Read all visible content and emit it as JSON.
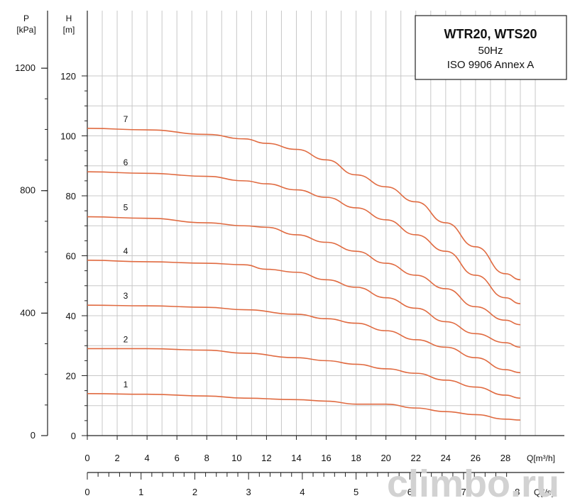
{
  "chart_data": {
    "type": "line",
    "title_box": {
      "line1": "WTR20, WTS20",
      "line2": "50Hz",
      "line3": "ISO 9906  Annex A"
    },
    "accent_color": "#e06a40",
    "y_axis_left": {
      "symbol": "P",
      "unit": "[kPa]",
      "ticks": [
        0,
        400,
        800,
        1200
      ]
    },
    "y_axis_right": {
      "symbol": "H",
      "unit": "[m]",
      "ticks": [
        0,
        20,
        40,
        60,
        80,
        100,
        120
      ],
      "ylim": [
        0,
        120
      ]
    },
    "x_axis_flow_m3h": {
      "label": "Q[m³/h]",
      "ticks": [
        0,
        2,
        4,
        6,
        8,
        10,
        12,
        14,
        16,
        18,
        20,
        22,
        24,
        26,
        28
      ],
      "xlim": [
        0,
        29
      ]
    },
    "x_axis_flow_ls": {
      "label": "Q[l/s]",
      "ticks": [
        0,
        1,
        2,
        3,
        4,
        5,
        6,
        7,
        8
      ]
    },
    "series": [
      {
        "name": "1",
        "x": [
          0,
          4,
          8,
          10.5,
          14,
          16,
          18,
          20,
          22,
          24,
          26,
          28,
          29
        ],
        "y": [
          14,
          13.8,
          13.2,
          12.5,
          12,
          11.5,
          10.5,
          10.5,
          9.2,
          8,
          7,
          5.5,
          5.2
        ]
      },
      {
        "name": "2",
        "x": [
          0,
          4,
          8,
          10.5,
          14,
          16,
          18,
          20,
          22,
          24,
          26,
          28,
          29
        ],
        "y": [
          29,
          29,
          28.5,
          27.5,
          26,
          25,
          23.8,
          22.3,
          20.8,
          18.5,
          16.2,
          13.5,
          12.5
        ]
      },
      {
        "name": "3",
        "x": [
          0,
          4,
          8,
          10.5,
          14,
          16,
          18,
          20,
          22,
          24,
          26,
          28,
          29
        ],
        "y": [
          43.5,
          43.3,
          42.8,
          42,
          40.5,
          39,
          37.5,
          35,
          32,
          29.5,
          26,
          22,
          21
        ]
      },
      {
        "name": "4",
        "x": [
          0,
          4,
          8,
          10.5,
          12,
          14,
          16,
          18,
          20,
          22,
          24,
          26,
          28,
          29
        ],
        "y": [
          58.5,
          58,
          57.5,
          57,
          55.5,
          54.5,
          52,
          49.5,
          46,
          42.5,
          38,
          34,
          31,
          29.5
        ]
      },
      {
        "name": "5",
        "x": [
          0,
          4,
          8,
          10.5,
          12,
          14,
          16,
          18,
          20,
          22,
          24,
          26,
          28,
          29
        ],
        "y": [
          73,
          72.5,
          71,
          70,
          69.5,
          67,
          64.5,
          61.5,
          57.5,
          53.5,
          49,
          43,
          38.5,
          37
        ]
      },
      {
        "name": "6",
        "x": [
          0,
          4,
          8,
          10.5,
          12,
          14,
          16,
          18,
          20,
          22,
          24,
          26,
          28,
          29
        ],
        "y": [
          88,
          87.5,
          86.5,
          85,
          84,
          82,
          79.5,
          76,
          72,
          67,
          61.5,
          53.5,
          46,
          44
        ]
      },
      {
        "name": "7",
        "x": [
          0,
          4,
          8,
          10.5,
          12,
          14,
          16,
          18,
          20,
          22,
          24,
          26,
          28,
          29
        ],
        "y": [
          102.5,
          102,
          100.5,
          99,
          97.5,
          95.5,
          92,
          87,
          83,
          78,
          71,
          63,
          54,
          52
        ]
      }
    ]
  },
  "watermark": "climbo.ru"
}
